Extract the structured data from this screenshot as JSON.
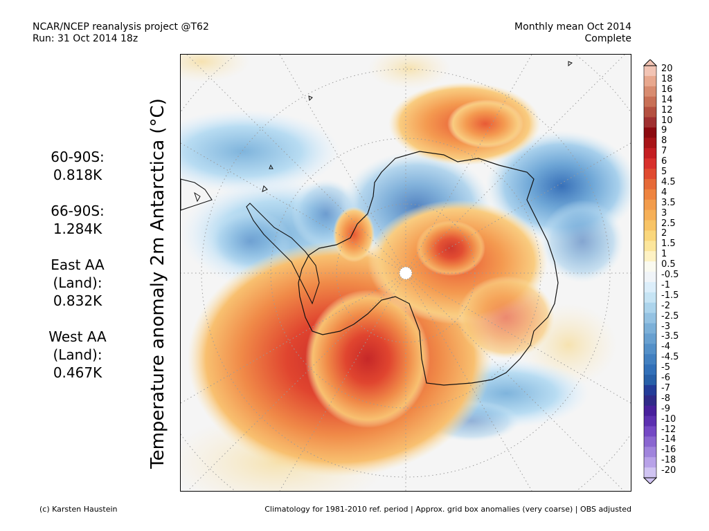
{
  "header": {
    "source": "NCAR/NCEP reanalysis project @T62",
    "run": "Run: 31 Oct 2014 18z",
    "period": "Monthly mean Oct 2014",
    "status": "Complete"
  },
  "ylabel": "Temperature anomaly 2m Antarctica (°C)",
  "stats": [
    {
      "label": "60-90S:",
      "value": "0.818K"
    },
    {
      "label": "66-90S:",
      "value": "1.284K"
    },
    {
      "label": "East AA",
      "label2": "(Land):",
      "value": "0.832K"
    },
    {
      "label": "West AA",
      "label2": "(Land):",
      "value": "0.467K"
    }
  ],
  "colorbar": {
    "labels": [
      "20",
      "18",
      "16",
      "14",
      "12",
      "10",
      "9",
      "8",
      "7",
      "6",
      "5",
      "4.5",
      "4",
      "3.5",
      "3",
      "2.5",
      "2",
      "1.5",
      "1",
      "0.5",
      "-0.5",
      "-1",
      "-1.5",
      "-2",
      "-2.5",
      "-3",
      "-3.5",
      "-4",
      "-4.5",
      "-5",
      "-6",
      "-7",
      "-8",
      "-9",
      "-10",
      "-12",
      "-14",
      "-16",
      "-18",
      "-20"
    ],
    "colors": [
      "#f2c4b4",
      "#e8a88e",
      "#d88c70",
      "#c87056",
      "#b45040",
      "#a03030",
      "#8c0a10",
      "#a81418",
      "#c41e22",
      "#d8302c",
      "#e04a30",
      "#e66a38",
      "#ee8440",
      "#f29c4c",
      "#f6b058",
      "#f8c466",
      "#fad77c",
      "#fce69c",
      "#fef2c4",
      "#fafaf0",
      "#f0f4f8",
      "#dceefa",
      "#c6e4f4",
      "#acd4ec",
      "#94c2e2",
      "#7cb0d8",
      "#68a0d0",
      "#5490c8",
      "#4280c0",
      "#3270b8",
      "#2860a8",
      "#243c98",
      "#302a88",
      "#48209c",
      "#5c30b0",
      "#7448c4",
      "#8a66d0",
      "#a084dc",
      "#b8a2e8",
      "#d0c4f2"
    ]
  },
  "footer": {
    "credit": "(c) Karsten Haustein",
    "note": "Climatology for 1981-2010 ref. period | Approx. grid box anomalies (very coarse) | OBS adjusted"
  }
}
